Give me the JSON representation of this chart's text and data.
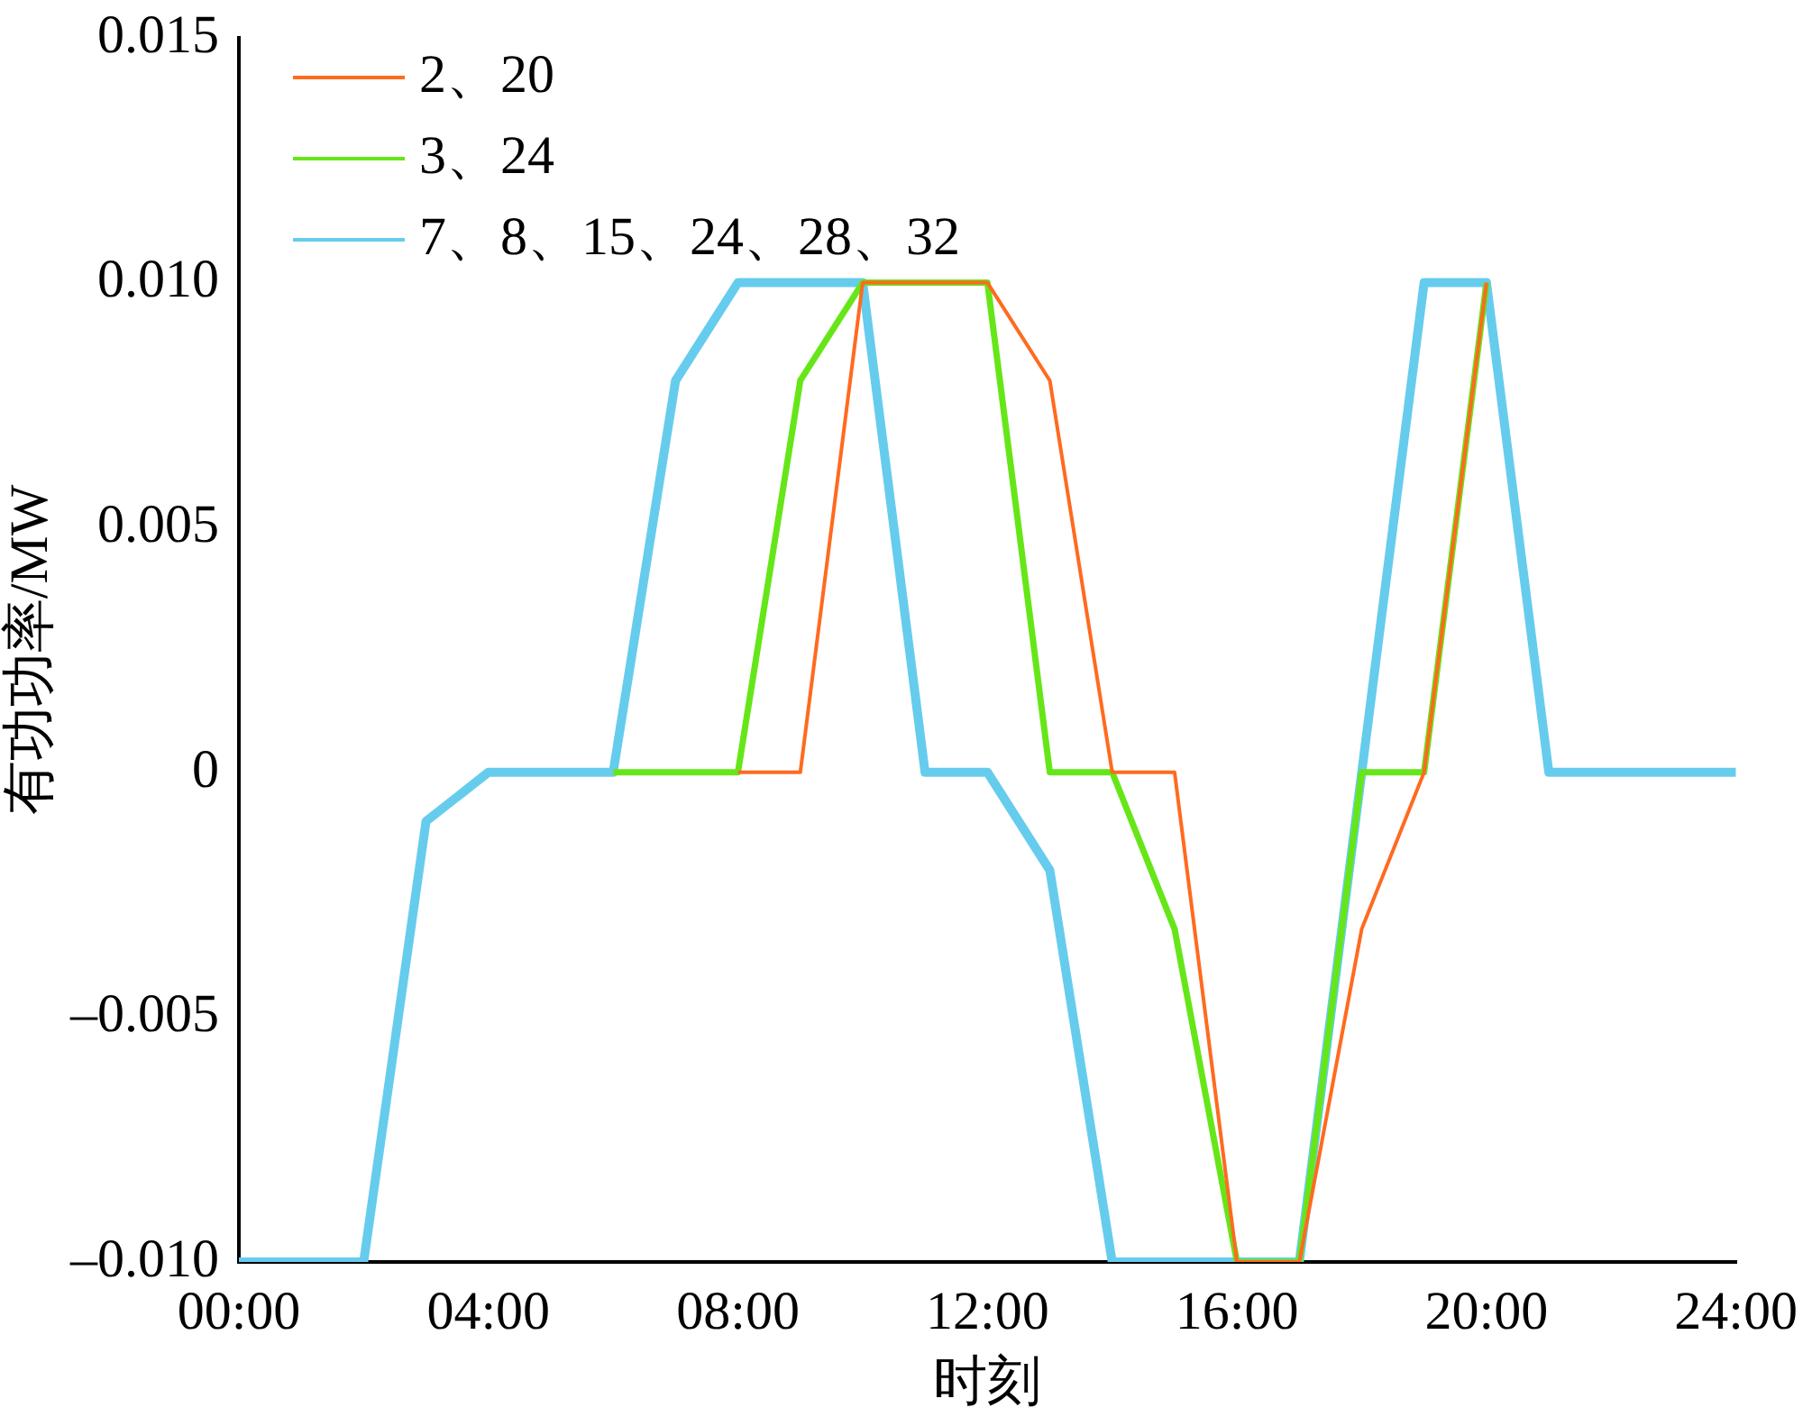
{
  "chart_data": {
    "type": "line",
    "xlabel": "时刻",
    "ylabel": "有功功率/MW",
    "xlim": [
      0,
      24
    ],
    "xticks": [
      {
        "value": 0,
        "label": "00:00"
      },
      {
        "value": 4,
        "label": "04:00"
      },
      {
        "value": 8,
        "label": "08:00"
      },
      {
        "value": 12,
        "label": "12:00"
      },
      {
        "value": 16,
        "label": "16:00"
      },
      {
        "value": 20,
        "label": "20:00"
      },
      {
        "value": 24,
        "label": "24:00"
      }
    ],
    "ylim": [
      -0.01,
      0.015
    ],
    "yticks": [
      {
        "value": -0.01,
        "label": "–0.010"
      },
      {
        "value": -0.005,
        "label": "–0.005"
      },
      0,
      0.005,
      {
        "value": 0.01,
        "label": "0.010"
      },
      0.015
    ],
    "grid": false,
    "legend": "top left",
    "marker": "none",
    "line_style": "solid",
    "series": [
      {
        "name": "2、20",
        "color": "#ff6a20",
        "x": [
          8,
          9,
          10,
          11,
          12,
          13,
          14,
          15,
          16,
          17,
          18,
          19,
          20
        ],
        "values": [
          0,
          0,
          0.01,
          0.01,
          0.01,
          0.008,
          0,
          0,
          -0.01,
          -0.01,
          -0.0032,
          0,
          0.01
        ]
      },
      {
        "name": "3、24",
        "color": "#66e619",
        "x": [
          6,
          7,
          8,
          9,
          10,
          11,
          12,
          13,
          14,
          15,
          16,
          17,
          18,
          19,
          20
        ],
        "values": [
          0,
          0,
          0,
          0.008,
          0.01,
          0.01,
          0.01,
          0,
          0,
          -0.0032,
          -0.01,
          -0.01,
          0,
          0,
          0.01
        ]
      },
      {
        "name": "7、8、15、24、28、32",
        "color": "#66ccee",
        "x": [
          0,
          1,
          2,
          3,
          4,
          5,
          6,
          7,
          8,
          9,
          10,
          11,
          12,
          13,
          14,
          15,
          16,
          17,
          18,
          19,
          20,
          21,
          22,
          23,
          24
        ],
        "values": [
          -0.01,
          -0.01,
          -0.01,
          -0.001,
          0,
          0,
          0,
          0.008,
          0.01,
          0.01,
          0.01,
          0,
          0,
          -0.002,
          -0.01,
          -0.01,
          -0.01,
          -0.01,
          0,
          0.01,
          0.01,
          0,
          0,
          0,
          0
        ]
      }
    ]
  }
}
